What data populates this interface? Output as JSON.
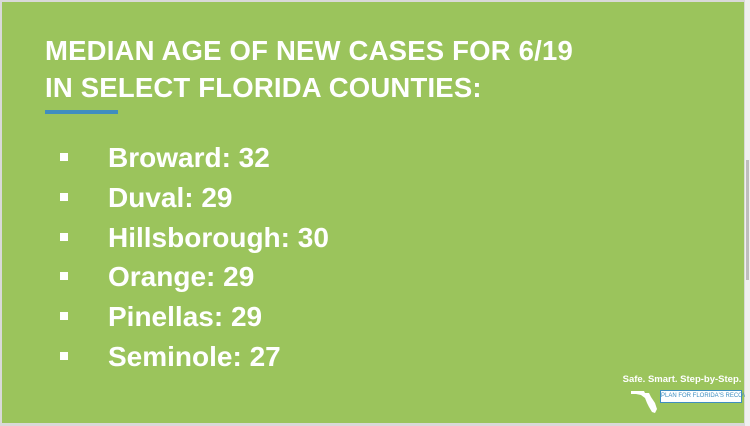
{
  "title": {
    "lines": [
      "MEDIAN AGE OF NEW CASES FOR 6/19",
      "IN SELECT FLORIDA COUNTIES:"
    ]
  },
  "items": [
    "Broward: 32",
    "Duval: 29",
    "Hillsborough: 30",
    "Orange: 29",
    "Pinellas: 29",
    "Seminole: 27"
  ],
  "logo": {
    "tagline": "Safe. Smart. Step-by-Step.",
    "banner": "PLAN FOR FLORIDA'S RECOVERY"
  }
}
